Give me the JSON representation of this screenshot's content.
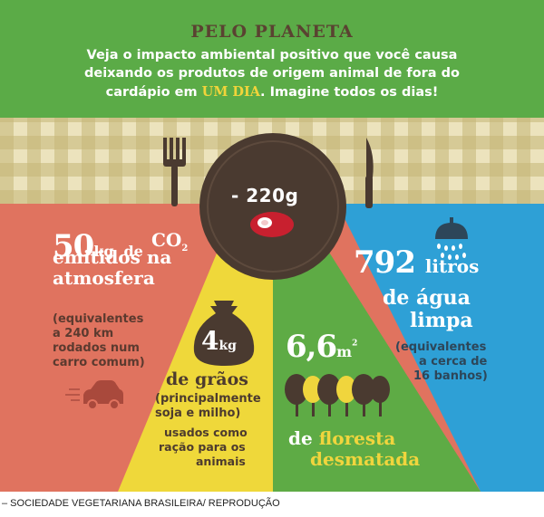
{
  "header": {
    "title": "PELO PLANETA",
    "intro_line1": "Veja o impacto ambiental positivo que você causa",
    "intro_line2": "deixando os produtos de origem animal de fora do",
    "intro_line3_before": "cardápio em",
    "intro_line3_highlight": "UM DIA",
    "intro_line3_after": ". Imagine todos os dias!"
  },
  "plate": {
    "weight": "- 220g",
    "icons": [
      "fork-icon",
      "knife-icon",
      "steak-icon"
    ]
  },
  "co2": {
    "value": "50",
    "unit": "kg",
    "connector": "de",
    "formula": "CO",
    "formula_sub": "2",
    "line1": "emitidos na",
    "line2": "atmosfera",
    "note1": "(equivalentes",
    "note2": "a 240 km",
    "note3": "rodados num",
    "note4": "carro comum)",
    "icon": "car-icon"
  },
  "grain": {
    "value": "4",
    "unit": "kg",
    "line": "de grãos",
    "note1": "(principalmente",
    "note2": "soja e milho)",
    "use1": "usados como",
    "use2": "ração para os",
    "use3": "animais",
    "icon": "grain-sack-icon"
  },
  "forest": {
    "value": "6,6",
    "unit": "m",
    "unit_sup": "2",
    "line1_prefix": "de",
    "line1_word": "floresta",
    "line2": "desmatada",
    "icon": "trees-icon"
  },
  "water": {
    "value": "792",
    "unit": "litros",
    "line1": "de água",
    "line2": "limpa",
    "note1": "(equivalentes",
    "note2": "a cerca de",
    "note3": "16 banhos)",
    "icon": "shower-icon"
  },
  "caption": "– SOCIEDADE VEGETARIANA BRASILEIRA/ REPRODUÇÃO",
  "colors": {
    "header_green": "#5bab47",
    "co2_salmon": "#e0735f",
    "grain_yellow": "#efd83a",
    "forest_green": "#5eab45",
    "water_blue": "#2ea0d6",
    "plate_brown": "#4a3a30",
    "title_brown": "#5a4231",
    "highlight_yellow": "#f1d43a"
  }
}
